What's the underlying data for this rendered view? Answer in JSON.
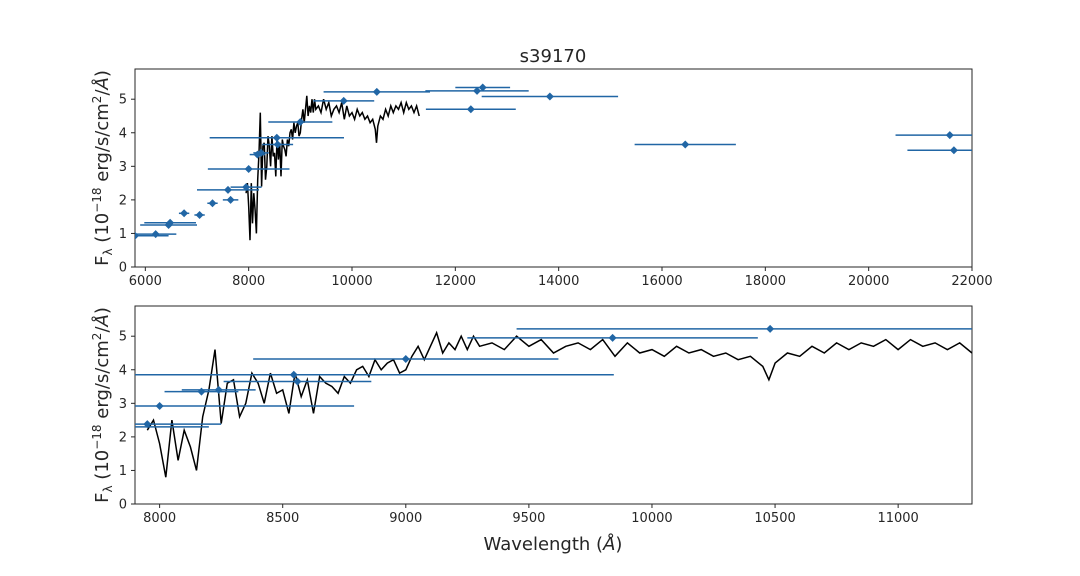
{
  "title": "s39170",
  "colors": {
    "spectrum": "#000000",
    "photometry": "#2166a5"
  },
  "chart_data": [
    {
      "type": "line",
      "panel": "full",
      "title": "s39170",
      "xlabel": "",
      "ylabel": "F_λ (10^-18 erg/s/cm^2/Å)",
      "ylabel_parts": {
        "main": "F",
        "sub": "λ",
        "unit_pre": " (10",
        "exp": "−18",
        "unit_mid": " erg/s/cm",
        "exp2": "2",
        "unit_post": "/",
        "angstrom": "Å",
        "close": ")"
      },
      "xlim": [
        5800,
        22000
      ],
      "ylim": [
        0,
        5.9
      ],
      "xticks": [
        "6000",
        "8000",
        "10000",
        "12000",
        "14000",
        "16000",
        "18000",
        "20000",
        "22000"
      ],
      "yticks": [
        "0",
        "1",
        "2",
        "3",
        "4",
        "5"
      ],
      "series": [
        {
          "kind": "spectrum",
          "x": [
            7950,
            7975,
            8000,
            8025,
            8050,
            8075,
            8100,
            8125,
            8150,
            8175,
            8200,
            8225,
            8250,
            8275,
            8300,
            8325,
            8350,
            8375,
            8400,
            8425,
            8450,
            8475,
            8500,
            8525,
            8550,
            8575,
            8600,
            8625,
            8650,
            8675,
            8700,
            8725,
            8750,
            8775,
            8800,
            8825,
            8850,
            8875,
            8900,
            8925,
            8950,
            8975,
            9000,
            9025,
            9050,
            9075,
            9100,
            9125,
            9150,
            9175,
            9200,
            9225,
            9250,
            9275,
            9300,
            9350,
            9400,
            9450,
            9500,
            9550,
            9600,
            9650,
            9700,
            9750,
            9800,
            9850,
            9900,
            9950,
            10000,
            10050,
            10100,
            10150,
            10200,
            10250,
            10300,
            10350,
            10400,
            10450,
            10475,
            10500,
            10550,
            10600,
            10650,
            10700,
            10750,
            10800,
            10850,
            10900,
            10950,
            11000,
            11050,
            11100,
            11150,
            11200,
            11250,
            11300
          ],
          "y": [
            2.2,
            2.5,
            1.8,
            0.8,
            2.5,
            1.3,
            2.2,
            1.7,
            1.0,
            2.6,
            3.4,
            4.6,
            2.4,
            3.6,
            3.7,
            2.6,
            3.0,
            3.9,
            3.6,
            3.0,
            3.9,
            3.3,
            3.4,
            2.7,
            3.9,
            3.2,
            3.7,
            2.7,
            3.8,
            3.6,
            3.5,
            3.3,
            3.8,
            3.6,
            4.0,
            4.1,
            3.8,
            4.3,
            4.0,
            4.2,
            4.3,
            3.9,
            4.0,
            4.4,
            4.7,
            4.3,
            4.7,
            5.1,
            4.5,
            4.8,
            4.6,
            5.0,
            4.6,
            5.0,
            4.7,
            4.8,
            4.6,
            5.0,
            4.7,
            4.9,
            4.5,
            4.7,
            4.8,
            4.6,
            4.9,
            4.4,
            4.8,
            4.5,
            4.6,
            4.4,
            4.7,
            4.5,
            4.6,
            4.4,
            4.5,
            4.3,
            4.4,
            4.1,
            3.7,
            4.2,
            4.5,
            4.4,
            4.7,
            4.5,
            4.8,
            4.6,
            4.8,
            4.7,
            4.9,
            4.6,
            4.9,
            4.7,
            4.8,
            4.6,
            4.8,
            4.5
          ]
        },
        {
          "kind": "photometry",
          "points": [
            {
              "x": 5800,
              "y": 0.93,
              "xerr": 650
            },
            {
              "x": 6200,
              "y": 0.98,
              "xerr": 400
            },
            {
              "x": 6450,
              "y": 1.25,
              "xerr": 550
            },
            {
              "x": 6480,
              "y": 1.32,
              "xerr": 500
            },
            {
              "x": 6750,
              "y": 1.6,
              "xerr": 100
            },
            {
              "x": 7050,
              "y": 1.55,
              "xerr": 100
            },
            {
              "x": 7300,
              "y": 1.9,
              "xerr": 100
            },
            {
              "x": 7650,
              "y": 2.0,
              "xerr": 150
            },
            {
              "x": 7600,
              "y": 2.3,
              "xerr": 600
            },
            {
              "x": 7950,
              "y": 2.38,
              "xerr": 300
            },
            {
              "x": 8000,
              "y": 2.92,
              "xerr": 790
            },
            {
              "x": 8170,
              "y": 3.35,
              "xerr": 150
            },
            {
              "x": 8240,
              "y": 3.4,
              "xerr": 150
            },
            {
              "x": 8545,
              "y": 3.85,
              "xerr": 1300
            },
            {
              "x": 8560,
              "y": 3.65,
              "xerr": 300
            },
            {
              "x": 9000,
              "y": 4.32,
              "xerr": 620
            },
            {
              "x": 9840,
              "y": 4.95,
              "xerr": 590
            },
            {
              "x": 10480,
              "y": 5.22,
              "xerr": 1030
            },
            {
              "x": 12300,
              "y": 4.7,
              "xerr": 870
            },
            {
              "x": 12420,
              "y": 5.25,
              "xerr": 1000
            },
            {
              "x": 12530,
              "y": 5.35,
              "xerr": 530
            },
            {
              "x": 13830,
              "y": 5.08,
              "xerr": 1320
            },
            {
              "x": 16450,
              "y": 3.65,
              "xerr": 980
            },
            {
              "x": 21570,
              "y": 3.93,
              "xerr": 1050
            },
            {
              "x": 21650,
              "y": 3.48,
              "xerr": 900
            }
          ]
        }
      ]
    },
    {
      "type": "line",
      "panel": "zoom",
      "title": "",
      "xlabel": "Wavelength (Å)",
      "xlabel_parts": {
        "main": "Wavelength (",
        "angstrom": "Å",
        "close": ")"
      },
      "ylabel": "F_λ (10^-18 erg/s/cm^2/Å)",
      "xlim": [
        7900,
        11300
      ],
      "ylim": [
        0,
        5.9
      ],
      "xticks": [
        "8000",
        "8500",
        "9000",
        "9500",
        "10000",
        "10500",
        "11000"
      ],
      "yticks": [
        "0",
        "1",
        "2",
        "3",
        "4",
        "5"
      ],
      "same_data_as": "full"
    }
  ]
}
